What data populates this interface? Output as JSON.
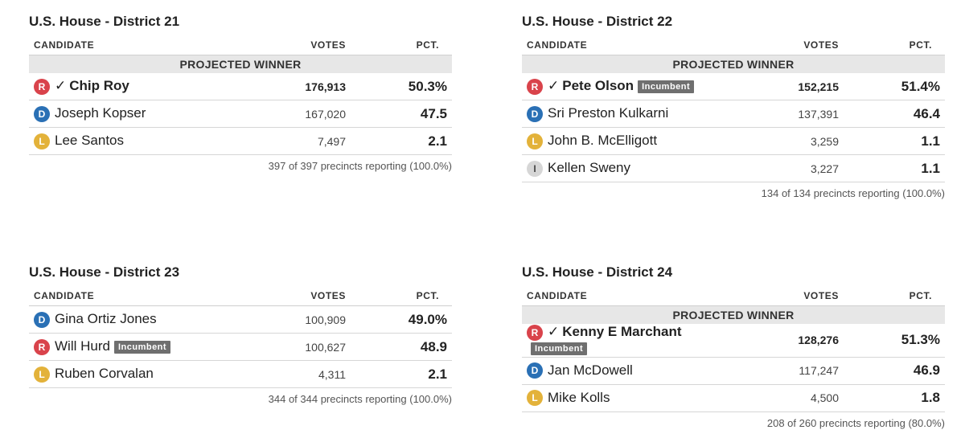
{
  "headers": {
    "candidate": "CANDIDATE",
    "votes": "VOTES",
    "pct": "PCT."
  },
  "projected_winner_label": "PROJECTED WINNER",
  "incumbent_label": "Incumbent",
  "check_mark": "✓",
  "party_colors": {
    "R": "#d9434b",
    "D": "#2a70b5",
    "L": "#e3b23a",
    "I": "#d6d6d6"
  },
  "races": [
    {
      "title": "U.S. House - District 21",
      "candidates": [
        {
          "party": "R",
          "name": "Chip Roy",
          "votes": "176,913",
          "pct": "50.3%"
        },
        {
          "party": "D",
          "name": "Joseph Kopser",
          "votes": "167,020",
          "pct": "47.5"
        },
        {
          "party": "L",
          "name": "Lee Santos",
          "votes": "7,497",
          "pct": "2.1"
        }
      ],
      "precincts": "397 of 397 precincts reporting (100.0%)"
    },
    {
      "title": "U.S. House - District 22",
      "candidates": [
        {
          "party": "R",
          "name": "Pete Olson",
          "votes": "152,215",
          "pct": "51.4%"
        },
        {
          "party": "D",
          "name": "Sri Preston Kulkarni",
          "votes": "137,391",
          "pct": "46.4"
        },
        {
          "party": "L",
          "name": "John B. McElligott",
          "votes": "3,259",
          "pct": "1.1"
        },
        {
          "party": "I",
          "name": "Kellen Sweny",
          "votes": "3,227",
          "pct": "1.1"
        }
      ],
      "precincts": "134 of 134 precincts reporting (100.0%)"
    },
    {
      "title": "U.S. House - District 23",
      "candidates": [
        {
          "party": "D",
          "name": "Gina Ortiz Jones",
          "votes": "100,909",
          "pct": "49.0%"
        },
        {
          "party": "R",
          "name": "Will Hurd",
          "votes": "100,627",
          "pct": "48.9"
        },
        {
          "party": "L",
          "name": "Ruben Corvalan",
          "votes": "4,311",
          "pct": "2.1"
        }
      ],
      "precincts": "344 of 344 precincts reporting (100.0%)"
    },
    {
      "title": "U.S. House - District 24",
      "candidates": [
        {
          "party": "R",
          "name": "Kenny E Marchant",
          "votes": "128,276",
          "pct": "51.3%"
        },
        {
          "party": "D",
          "name": "Jan McDowell",
          "votes": "117,247",
          "pct": "46.9"
        },
        {
          "party": "L",
          "name": "Mike Kolls",
          "votes": "4,500",
          "pct": "1.8"
        }
      ],
      "precincts": "208 of 260 precincts reporting (80.0%)"
    }
  ]
}
